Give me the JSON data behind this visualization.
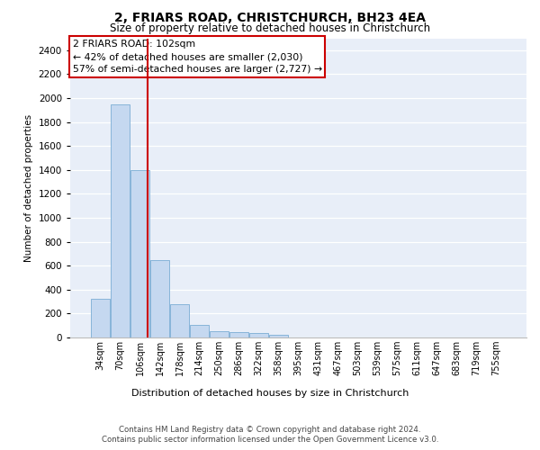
{
  "title1": "2, FRIARS ROAD, CHRISTCHURCH, BH23 4EA",
  "title2": "Size of property relative to detached houses in Christchurch",
  "xlabel": "Distribution of detached houses by size in Christchurch",
  "ylabel": "Number of detached properties",
  "bar_labels": [
    "34sqm",
    "70sqm",
    "106sqm",
    "142sqm",
    "178sqm",
    "214sqm",
    "250sqm",
    "286sqm",
    "322sqm",
    "358sqm",
    "395sqm",
    "431sqm",
    "467sqm",
    "503sqm",
    "539sqm",
    "575sqm",
    "611sqm",
    "647sqm",
    "683sqm",
    "719sqm",
    "755sqm"
  ],
  "bar_values": [
    325,
    1950,
    1400,
    650,
    275,
    105,
    50,
    45,
    35,
    22,
    0,
    0,
    0,
    0,
    0,
    0,
    0,
    0,
    0,
    0,
    0
  ],
  "bar_color": "#c5d8f0",
  "bar_edge_color": "#7aadd4",
  "vline_x_index": 2,
  "vline_color": "#cc0000",
  "annotation_text": "2 FRIARS ROAD: 102sqm\n← 42% of detached houses are smaller (2,030)\n57% of semi-detached houses are larger (2,727) →",
  "annotation_box_color": "#ffffff",
  "annotation_box_edge_color": "#cc0000",
  "ylim": [
    0,
    2500
  ],
  "yticks": [
    0,
    200,
    400,
    600,
    800,
    1000,
    1200,
    1400,
    1600,
    1800,
    2000,
    2200,
    2400
  ],
  "footer1": "Contains HM Land Registry data © Crown copyright and database right 2024.",
  "footer2": "Contains public sector information licensed under the Open Government Licence v3.0.",
  "plot_bg_color": "#e8eef8",
  "fig_bg_color": "#ffffff"
}
